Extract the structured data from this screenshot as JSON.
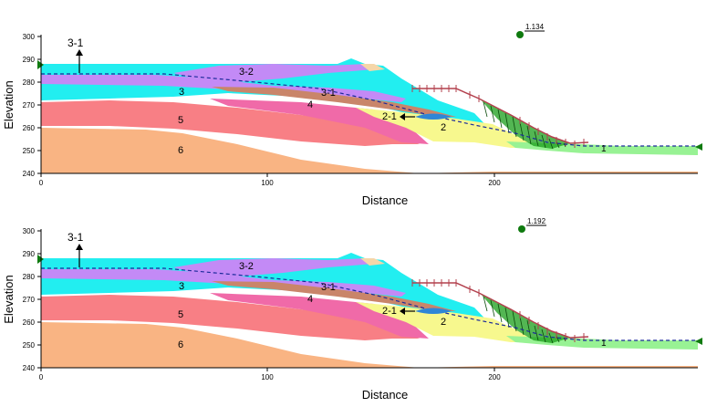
{
  "colors": {
    "layer6": "#f9b483",
    "layer5": "#f87f85",
    "layer5_lens": "#f06aa8",
    "layer3": "#22eef0",
    "layer3_2": "#c38af6",
    "layer4": "#c9856a",
    "layer3_1": "#c07b74",
    "layer2": "#f7f88e",
    "layer1": "#98f294",
    "top_cap": "#f5d6a8",
    "slip_mass": "#1a9e1a",
    "water_table": "#1b2a9a",
    "surface_load": "#b3404d",
    "axis": "#000000",
    "tick_text": "#000000",
    "center": "#0f7a0f",
    "arrow_lens": "#2f86d6"
  },
  "panels": [
    {
      "x_ticks": [
        "0",
        "100",
        "200"
      ],
      "y_ticks": [
        "300",
        "290",
        "280",
        "270",
        "260",
        "250",
        "240"
      ],
      "xlabel": "Distance",
      "ylabel": "Elevation",
      "factor_of_safety": "1.134",
      "labels": {
        "l31_top": "3-1",
        "l32": "3-2",
        "l3": "3",
        "l31_mid": "3-1",
        "l4": "4",
        "l5": "5",
        "l6": "6",
        "l21": "2-1",
        "l2": "2",
        "l1": "1"
      }
    },
    {
      "x_ticks": [
        "0",
        "100",
        "200"
      ],
      "y_ticks": [
        "300",
        "290",
        "280",
        "270",
        "260",
        "250",
        "240"
      ],
      "xlabel": "Distance",
      "ylabel": "Elevation",
      "factor_of_safety": "1.192",
      "labels": {
        "l31_top": "3-1",
        "l32": "3-2",
        "l3": "3",
        "l31_mid": "3-1",
        "l4": "4",
        "l5": "5",
        "l6": "6",
        "l21": "2-1",
        "l2": "2",
        "l1": "1"
      }
    }
  ]
}
